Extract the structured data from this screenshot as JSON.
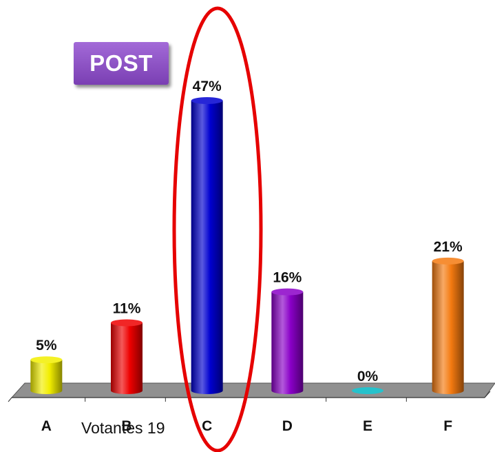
{
  "badge": {
    "label": "POST",
    "color": "#8a4fc2"
  },
  "footer": {
    "label": "Votantes 19"
  },
  "highlight": {
    "category": "C",
    "color": "#e60000"
  },
  "chart_data": {
    "type": "bar",
    "title": "",
    "xlabel": "",
    "ylabel": "",
    "ylim": [
      0,
      50
    ],
    "grid": false,
    "categories": [
      "A",
      "B",
      "C",
      "D",
      "E",
      "F"
    ],
    "values": [
      5,
      11,
      47,
      16,
      0,
      21
    ],
    "data_labels": [
      "5%",
      "11%",
      "47%",
      "16%",
      "0%",
      "21%"
    ],
    "colors": [
      "#f2ee00",
      "#ee0000",
      "#0000d0",
      "#8a00c8",
      "#00b7c3",
      "#f47a10"
    ],
    "floor_color": "#909090"
  }
}
